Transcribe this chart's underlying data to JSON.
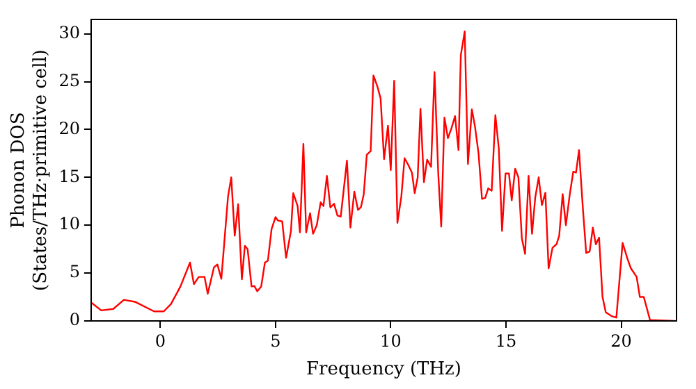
{
  "chart_data": {
    "type": "line",
    "xlabel": "Frequency (THz)",
    "ylabel": "Phonon DOS\n(States/THz·primitive cell)",
    "xlim": [
      -3,
      22.4
    ],
    "ylim": [
      0,
      31.5
    ],
    "xticks": [
      0,
      5,
      10,
      15,
      20
    ],
    "yticks": [
      0,
      5,
      10,
      15,
      20,
      25,
      30
    ],
    "grid": false,
    "legend": false,
    "marker": "none",
    "line_style": "solid",
    "series": [
      {
        "color": "#ff0000",
        "x": [
          -2.98,
          -2.56,
          -2.04,
          -1.58,
          -1.1,
          -0.27,
          0.15,
          0.46,
          0.875,
          1.29,
          1.46,
          1.67,
          1.92,
          2.06,
          2.33,
          2.48,
          2.65,
          2.94,
          3.08,
          3.23,
          3.38,
          3.54,
          3.67,
          3.79,
          3.96,
          4.08,
          4.21,
          4.38,
          4.54,
          4.67,
          4.83,
          5.0,
          5.1,
          5.29,
          5.46,
          5.67,
          5.77,
          5.96,
          6.06,
          6.21,
          6.33,
          6.5,
          6.63,
          6.79,
          6.96,
          7.08,
          7.23,
          7.38,
          7.54,
          7.69,
          7.83,
          8.1,
          8.25,
          8.42,
          8.58,
          8.71,
          8.83,
          8.96,
          9.13,
          9.25,
          9.42,
          9.56,
          9.71,
          9.88,
          10.0,
          10.15,
          10.29,
          10.46,
          10.6,
          10.75,
          10.92,
          11.04,
          11.17,
          11.29,
          11.44,
          11.58,
          11.75,
          11.9,
          12.06,
          12.19,
          12.33,
          12.48,
          12.63,
          12.79,
          12.94,
          13.04,
          13.21,
          13.35,
          13.52,
          13.65,
          13.81,
          13.96,
          14.1,
          14.23,
          14.38,
          14.54,
          14.69,
          14.83,
          14.98,
          15.13,
          15.25,
          15.4,
          15.54,
          15.69,
          15.83,
          15.98,
          16.13,
          16.27,
          16.42,
          16.56,
          16.71,
          16.85,
          17.02,
          17.19,
          17.31,
          17.46,
          17.6,
          17.77,
          17.92,
          18.04,
          18.17,
          18.33,
          18.48,
          18.63,
          18.77,
          18.9,
          19.04,
          19.19,
          19.33,
          19.58,
          19.79,
          20.06,
          20.27,
          20.42,
          20.67,
          20.81,
          20.98,
          21.25,
          22.3
        ],
        "values": [
          1.9,
          1.1,
          1.25,
          2.2,
          2.0,
          1.0,
          1.0,
          1.75,
          3.6,
          6.1,
          3.85,
          4.6,
          4.6,
          2.85,
          5.6,
          5.9,
          4.4,
          13.0,
          15.0,
          8.9,
          12.2,
          4.35,
          7.85,
          7.5,
          3.6,
          3.65,
          3.1,
          3.6,
          6.1,
          6.3,
          9.6,
          10.85,
          10.5,
          10.4,
          6.6,
          9.4,
          13.35,
          12.0,
          9.25,
          18.5,
          9.25,
          11.25,
          9.1,
          10.0,
          12.4,
          12.0,
          15.15,
          11.85,
          12.25,
          11.0,
          10.9,
          16.75,
          9.75,
          13.5,
          11.6,
          11.9,
          13.25,
          17.35,
          17.75,
          25.65,
          24.5,
          23.25,
          16.9,
          20.4,
          15.75,
          25.1,
          10.25,
          13.0,
          17.0,
          16.35,
          15.5,
          13.35,
          15.0,
          22.15,
          14.5,
          16.85,
          16.1,
          26.0,
          15.5,
          9.85,
          21.25,
          19.1,
          20.1,
          21.4,
          17.85,
          27.75,
          30.25,
          16.4,
          22.1,
          20.4,
          17.5,
          12.75,
          12.85,
          13.85,
          13.6,
          21.5,
          18.0,
          9.4,
          15.4,
          15.4,
          12.6,
          15.9,
          15.0,
          8.6,
          7.0,
          15.15,
          9.1,
          12.9,
          15.0,
          12.1,
          13.4,
          5.5,
          7.65,
          8.0,
          8.9,
          13.25,
          10.0,
          13.25,
          15.6,
          15.5,
          17.85,
          12.0,
          7.1,
          7.25,
          9.75,
          8.0,
          8.7,
          2.5,
          0.9,
          0.5,
          0.35,
          8.15,
          6.5,
          5.5,
          4.6,
          2.5,
          2.5,
          0.1,
          0
        ]
      }
    ]
  }
}
